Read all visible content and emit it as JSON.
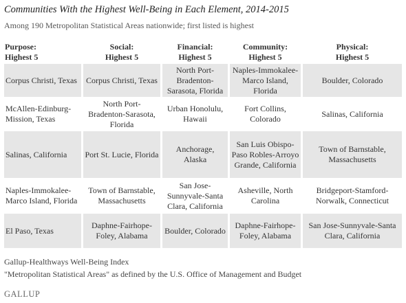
{
  "header": {
    "title": "Communities With the Highest Well-Being in Each Element, 2014-2015",
    "subtitle": "Among 190 Metropolitan Statistical Areas nationwide; first listed is highest"
  },
  "table": {
    "headers": [
      "Purpose:\nHighest 5",
      "Social:\nHighest 5",
      "Financial:\nHighest 5",
      "Community:\nHighest 5",
      "Physical:\nHighest 5"
    ],
    "rows": [
      [
        "Corpus Christi, Texas",
        "Corpus Christi, Texas",
        "North Port-Bradenton-Sarasota, Florida",
        "Naples-Immokalee-Marco Island, Florida",
        "Boulder, Colorado"
      ],
      [
        "McAllen-Edinburg-Mission, Texas",
        "North Port-Bradenton-Sarasota, Florida",
        "Urban Honolulu, Hawaii",
        "Fort Collins, Colorado",
        "Salinas, California"
      ],
      [
        "Salinas, California",
        "Port St. Lucie, Florida",
        "Anchorage, Alaska",
        "San Luis Obispo-Paso Robles-Arroyo Grande, California",
        "Town of Barnstable, Massachusetts"
      ],
      [
        "Naples-Immokalee-Marco Island, Florida",
        "Town of Barnstable, Massachusetts",
        "San Jose-Sunnyvale-Santa Clara, California",
        "Asheville, North Carolina",
        "Bridgeport-Stamford-Norwalk, Connecticut"
      ],
      [
        "El Paso, Texas",
        "Daphne-Fairhope-Foley, Alabama",
        "Boulder, Colorado",
        "Daphne-Fairhope-Foley, Alabama",
        "San Jose-Sunnyvale-Santa Clara, California"
      ]
    ]
  },
  "footer": {
    "notes": [
      "Gallup-Healthways Well-Being Index",
      "\"Metropolitan Statistical Areas\" as defined by the U.S. Office of Management and Budget"
    ],
    "logo": "GALLUP"
  }
}
